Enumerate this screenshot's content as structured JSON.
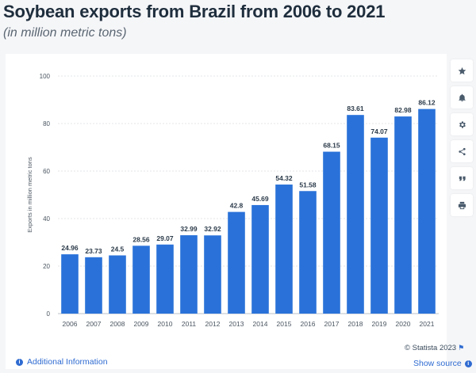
{
  "header": {
    "title": "Soybean exports from Brazil from 2006 to 2021",
    "subtitle": "(in million metric tons)"
  },
  "toolbar": {
    "items": [
      {
        "icon": "star-icon"
      },
      {
        "icon": "bell-icon"
      },
      {
        "icon": "gear-icon"
      },
      {
        "icon": "share-icon"
      },
      {
        "icon": "quote-icon"
      },
      {
        "icon": "print-icon"
      }
    ]
  },
  "footer": {
    "credits": "© Statista 2023",
    "additional_info": "Additional Information",
    "show_source": "Show source"
  },
  "colors": {
    "bar": "#2a72d9",
    "grid": "#e3e6ea",
    "accent": "#2f6bd1"
  },
  "chart_data": {
    "type": "bar",
    "title": "Soybean exports from Brazil from 2006 to 2021",
    "subtitle": "(in million metric tons)",
    "xlabel": "",
    "ylabel": "Exports in million metric tons",
    "ylim": [
      0,
      100
    ],
    "yticks": [
      0,
      20,
      40,
      60,
      80,
      100
    ],
    "grid": true,
    "categories": [
      "2006",
      "2007",
      "2008",
      "2009",
      "2010",
      "2011",
      "2012",
      "2013",
      "2014",
      "2015",
      "2016",
      "2017",
      "2018",
      "2019",
      "2020",
      "2021"
    ],
    "values": [
      24.96,
      23.73,
      24.5,
      28.56,
      29.07,
      32.99,
      32.92,
      42.8,
      45.69,
      54.32,
      51.58,
      68.15,
      83.61,
      74.07,
      82.98,
      86.12
    ],
    "value_labels": [
      "24.96",
      "23.73",
      "24.5",
      "28.56",
      "29.07",
      "32.99",
      "32.92",
      "42.8",
      "45.69",
      "54.32",
      "51.58",
      "68.15",
      "83.61",
      "74.07",
      "82.98",
      "86.12"
    ]
  }
}
